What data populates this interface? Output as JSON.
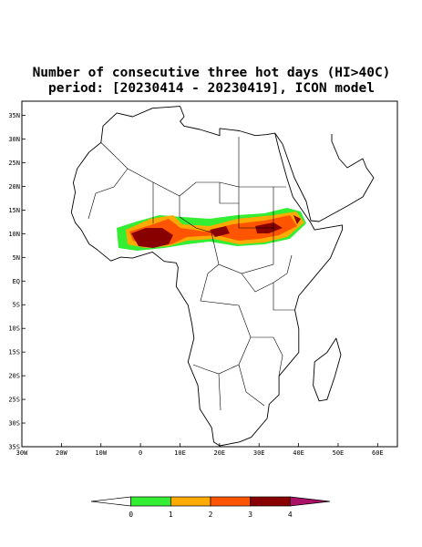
{
  "title": {
    "line1": "Number of consecutive three hot days (HI>40C)",
    "line2": "period: [20230414 - 20230419], ICON model"
  },
  "map": {
    "lon_range": [
      -30,
      65
    ],
    "lat_range": [
      -35,
      38
    ],
    "lon_ticks": [
      {
        "value": -30,
        "label": "30W"
      },
      {
        "value": -20,
        "label": "20W"
      },
      {
        "value": -10,
        "label": "10W"
      },
      0,
      {
        "value": 10,
        "label": "10E"
      },
      {
        "value": 20,
        "label": "20E"
      },
      {
        "value": 30,
        "label": "30E"
      },
      {
        "value": 40,
        "label": "40E"
      },
      {
        "value": 50,
        "label": "50E"
      },
      {
        "value": 60,
        "label": "60E"
      }
    ],
    "lat_ticks": [
      {
        "value": 35,
        "label": "35N"
      },
      {
        "value": 30,
        "label": "30N"
      },
      {
        "value": 25,
        "label": "25N"
      },
      {
        "value": 20,
        "label": "20N"
      },
      {
        "value": 15,
        "label": "15N"
      },
      {
        "value": 10,
        "label": "10N"
      },
      {
        "value": 5,
        "label": "5N"
      },
      {
        "value": 0,
        "label": "EQ"
      },
      {
        "value": -5,
        "label": "5S"
      },
      {
        "value": -10,
        "label": "10S"
      },
      {
        "value": -15,
        "label": "15S"
      },
      {
        "value": -20,
        "label": "20S"
      },
      {
        "value": -25,
        "label": "25S"
      },
      {
        "value": -30,
        "label": "30S"
      },
      {
        "value": -35,
        "label": "35S"
      }
    ]
  },
  "colorbar": {
    "bounds": [
      0,
      1,
      2,
      3,
      4
    ],
    "colors": [
      "#ffffff",
      "#33ee33",
      "#ffaa00",
      "#ff5500",
      "#880000",
      "#aa1166"
    ]
  }
}
